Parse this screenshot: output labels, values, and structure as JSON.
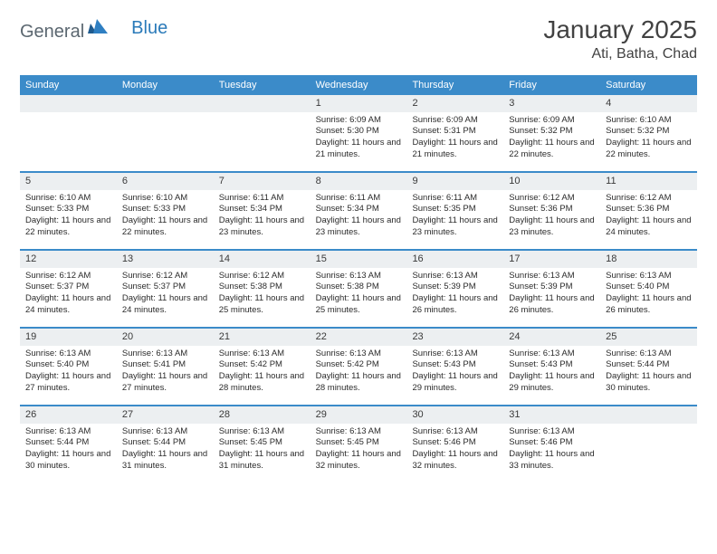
{
  "brand": {
    "part1": "General",
    "part2": "Blue"
  },
  "title": "January 2025",
  "location": "Ati, Batha, Chad",
  "colors": {
    "header_bg": "#3b8bc9",
    "header_text": "#ffffff",
    "daynum_bg": "#eceff1",
    "rule": "#3b8bc9",
    "brand_gray": "#5b6770",
    "brand_blue": "#2a7ab9",
    "text": "#333333"
  },
  "dayNames": [
    "Sunday",
    "Monday",
    "Tuesday",
    "Wednesday",
    "Thursday",
    "Friday",
    "Saturday"
  ],
  "weeks": [
    [
      {
        "blank": true
      },
      {
        "blank": true
      },
      {
        "blank": true
      },
      {
        "n": "1",
        "sunrise": "6:09 AM",
        "sunset": "5:30 PM",
        "daylight": "11 hours and 21 minutes."
      },
      {
        "n": "2",
        "sunrise": "6:09 AM",
        "sunset": "5:31 PM",
        "daylight": "11 hours and 21 minutes."
      },
      {
        "n": "3",
        "sunrise": "6:09 AM",
        "sunset": "5:32 PM",
        "daylight": "11 hours and 22 minutes."
      },
      {
        "n": "4",
        "sunrise": "6:10 AM",
        "sunset": "5:32 PM",
        "daylight": "11 hours and 22 minutes."
      }
    ],
    [
      {
        "n": "5",
        "sunrise": "6:10 AM",
        "sunset": "5:33 PM",
        "daylight": "11 hours and 22 minutes."
      },
      {
        "n": "6",
        "sunrise": "6:10 AM",
        "sunset": "5:33 PM",
        "daylight": "11 hours and 22 minutes."
      },
      {
        "n": "7",
        "sunrise": "6:11 AM",
        "sunset": "5:34 PM",
        "daylight": "11 hours and 23 minutes."
      },
      {
        "n": "8",
        "sunrise": "6:11 AM",
        "sunset": "5:34 PM",
        "daylight": "11 hours and 23 minutes."
      },
      {
        "n": "9",
        "sunrise": "6:11 AM",
        "sunset": "5:35 PM",
        "daylight": "11 hours and 23 minutes."
      },
      {
        "n": "10",
        "sunrise": "6:12 AM",
        "sunset": "5:36 PM",
        "daylight": "11 hours and 23 minutes."
      },
      {
        "n": "11",
        "sunrise": "6:12 AM",
        "sunset": "5:36 PM",
        "daylight": "11 hours and 24 minutes."
      }
    ],
    [
      {
        "n": "12",
        "sunrise": "6:12 AM",
        "sunset": "5:37 PM",
        "daylight": "11 hours and 24 minutes."
      },
      {
        "n": "13",
        "sunrise": "6:12 AM",
        "sunset": "5:37 PM",
        "daylight": "11 hours and 24 minutes."
      },
      {
        "n": "14",
        "sunrise": "6:12 AM",
        "sunset": "5:38 PM",
        "daylight": "11 hours and 25 minutes."
      },
      {
        "n": "15",
        "sunrise": "6:13 AM",
        "sunset": "5:38 PM",
        "daylight": "11 hours and 25 minutes."
      },
      {
        "n": "16",
        "sunrise": "6:13 AM",
        "sunset": "5:39 PM",
        "daylight": "11 hours and 26 minutes."
      },
      {
        "n": "17",
        "sunrise": "6:13 AM",
        "sunset": "5:39 PM",
        "daylight": "11 hours and 26 minutes."
      },
      {
        "n": "18",
        "sunrise": "6:13 AM",
        "sunset": "5:40 PM",
        "daylight": "11 hours and 26 minutes."
      }
    ],
    [
      {
        "n": "19",
        "sunrise": "6:13 AM",
        "sunset": "5:40 PM",
        "daylight": "11 hours and 27 minutes."
      },
      {
        "n": "20",
        "sunrise": "6:13 AM",
        "sunset": "5:41 PM",
        "daylight": "11 hours and 27 minutes."
      },
      {
        "n": "21",
        "sunrise": "6:13 AM",
        "sunset": "5:42 PM",
        "daylight": "11 hours and 28 minutes."
      },
      {
        "n": "22",
        "sunrise": "6:13 AM",
        "sunset": "5:42 PM",
        "daylight": "11 hours and 28 minutes."
      },
      {
        "n": "23",
        "sunrise": "6:13 AM",
        "sunset": "5:43 PM",
        "daylight": "11 hours and 29 minutes."
      },
      {
        "n": "24",
        "sunrise": "6:13 AM",
        "sunset": "5:43 PM",
        "daylight": "11 hours and 29 minutes."
      },
      {
        "n": "25",
        "sunrise": "6:13 AM",
        "sunset": "5:44 PM",
        "daylight": "11 hours and 30 minutes."
      }
    ],
    [
      {
        "n": "26",
        "sunrise": "6:13 AM",
        "sunset": "5:44 PM",
        "daylight": "11 hours and 30 minutes."
      },
      {
        "n": "27",
        "sunrise": "6:13 AM",
        "sunset": "5:44 PM",
        "daylight": "11 hours and 31 minutes."
      },
      {
        "n": "28",
        "sunrise": "6:13 AM",
        "sunset": "5:45 PM",
        "daylight": "11 hours and 31 minutes."
      },
      {
        "n": "29",
        "sunrise": "6:13 AM",
        "sunset": "5:45 PM",
        "daylight": "11 hours and 32 minutes."
      },
      {
        "n": "30",
        "sunrise": "6:13 AM",
        "sunset": "5:46 PM",
        "daylight": "11 hours and 32 minutes."
      },
      {
        "n": "31",
        "sunrise": "6:13 AM",
        "sunset": "5:46 PM",
        "daylight": "11 hours and 33 minutes."
      },
      {
        "blank": true
      }
    ]
  ],
  "labels": {
    "sunrise": "Sunrise:",
    "sunset": "Sunset:",
    "daylight": "Daylight:"
  }
}
